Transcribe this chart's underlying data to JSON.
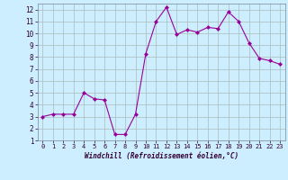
{
  "x": [
    0,
    1,
    2,
    3,
    4,
    5,
    6,
    7,
    8,
    9,
    10,
    11,
    12,
    13,
    14,
    15,
    16,
    17,
    18,
    19,
    20,
    21,
    22,
    23
  ],
  "y": [
    3.0,
    3.2,
    3.2,
    3.2,
    5.0,
    4.5,
    4.4,
    1.5,
    1.5,
    3.2,
    8.3,
    11.0,
    12.2,
    9.9,
    10.3,
    10.1,
    10.5,
    10.4,
    11.8,
    11.0,
    9.2,
    7.9,
    7.7,
    7.4
  ],
  "line_color": "#990099",
  "marker": "D",
  "marker_size": 2,
  "bg_color": "#cceeff",
  "grid_color": "#aabbbb",
  "xlabel": "Windchill (Refroidissement éolien,°C)",
  "xlim": [
    -0.5,
    23.5
  ],
  "ylim": [
    1,
    12.5
  ],
  "yticks": [
    1,
    2,
    3,
    4,
    5,
    6,
    7,
    8,
    9,
    10,
    11,
    12
  ],
  "xticks": [
    0,
    1,
    2,
    3,
    4,
    5,
    6,
    7,
    8,
    9,
    10,
    11,
    12,
    13,
    14,
    15,
    16,
    17,
    18,
    19,
    20,
    21,
    22,
    23
  ]
}
